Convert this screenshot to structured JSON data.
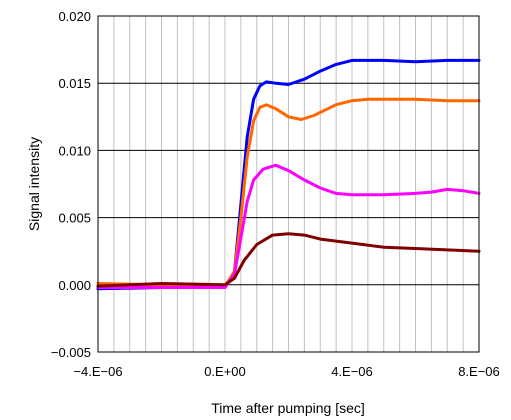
{
  "chart_data": {
    "type": "line",
    "title": "",
    "xlabel": "Time after pumping [sec]",
    "ylabel": "Signal intensity",
    "xlim": [
      -4e-06,
      8e-06
    ],
    "ylim": [
      -0.005,
      0.02
    ],
    "x_ticks": [
      -4e-06,
      0,
      4e-06,
      8e-06
    ],
    "x_tick_labels": [
      "−4.E−06",
      "0.E+00",
      "4.E−06",
      "8.E−06"
    ],
    "y_ticks": [
      -0.005,
      0,
      0.005,
      0.01,
      0.015,
      0.02
    ],
    "y_tick_labels": [
      "−0.005",
      "0.000",
      "0.005",
      "0.010",
      "0.015",
      "0.020"
    ],
    "grid": true,
    "series": [
      {
        "color": "#0000ff",
        "points": [
          [
            -4e-06,
            -0.0003
          ],
          [
            -2e-06,
            -0.0002
          ],
          [
            0,
            -0.0002
          ],
          [
            3e-07,
            0.001
          ],
          [
            5e-07,
            0.006
          ],
          [
            7e-07,
            0.011
          ],
          [
            9e-07,
            0.0138
          ],
          [
            1.1e-06,
            0.0148
          ],
          [
            1.3e-06,
            0.0151
          ],
          [
            1.6e-06,
            0.015
          ],
          [
            2e-06,
            0.0149
          ],
          [
            2.5e-06,
            0.0153
          ],
          [
            3e-06,
            0.0159
          ],
          [
            3.5e-06,
            0.0164
          ],
          [
            4e-06,
            0.0167
          ],
          [
            5e-06,
            0.0167
          ],
          [
            6e-06,
            0.0166
          ],
          [
            7e-06,
            0.0167
          ],
          [
            8e-06,
            0.0167
          ]
        ]
      },
      {
        "color": "#ff6600",
        "points": [
          [
            -4e-06,
            0.0001
          ],
          [
            -2e-06,
            0.0
          ],
          [
            0,
            -0.0001
          ],
          [
            3e-07,
            0.001
          ],
          [
            5e-07,
            0.005
          ],
          [
            7e-07,
            0.0095
          ],
          [
            9e-07,
            0.0122
          ],
          [
            1.1e-06,
            0.0132
          ],
          [
            1.3e-06,
            0.0134
          ],
          [
            1.6e-06,
            0.0131
          ],
          [
            2e-06,
            0.0125
          ],
          [
            2.4e-06,
            0.0123
          ],
          [
            2.8e-06,
            0.0126
          ],
          [
            3.5e-06,
            0.0134
          ],
          [
            4e-06,
            0.0137
          ],
          [
            4.5e-06,
            0.0138
          ],
          [
            6e-06,
            0.0138
          ],
          [
            7e-06,
            0.0137
          ],
          [
            8e-06,
            0.0137
          ]
        ]
      },
      {
        "color": "#ff00ff",
        "points": [
          [
            -4e-06,
            -0.0002
          ],
          [
            -2e-06,
            -0.0002
          ],
          [
            0,
            -0.0002
          ],
          [
            3e-07,
            0.0008
          ],
          [
            5e-07,
            0.0035
          ],
          [
            7e-07,
            0.0062
          ],
          [
            9e-07,
            0.0078
          ],
          [
            1.2e-06,
            0.0086
          ],
          [
            1.6e-06,
            0.0089
          ],
          [
            2e-06,
            0.0085
          ],
          [
            2.5e-06,
            0.0078
          ],
          [
            3e-06,
            0.0072
          ],
          [
            3.5e-06,
            0.0068
          ],
          [
            4e-06,
            0.0067
          ],
          [
            5e-06,
            0.0067
          ],
          [
            6e-06,
            0.0068
          ],
          [
            6.5e-06,
            0.0069
          ],
          [
            7e-06,
            0.0071
          ],
          [
            7.5e-06,
            0.007
          ],
          [
            8e-06,
            0.0068
          ]
        ]
      },
      {
        "color": "#800000",
        "points": [
          [
            -4e-06,
            -0.0001
          ],
          [
            -2e-06,
            0.0001
          ],
          [
            0,
            0.0
          ],
          [
            3e-07,
            0.0005
          ],
          [
            6e-07,
            0.0018
          ],
          [
            1e-06,
            0.003
          ],
          [
            1.5e-06,
            0.0037
          ],
          [
            2e-06,
            0.0038
          ],
          [
            2.5e-06,
            0.0037
          ],
          [
            3e-06,
            0.0034
          ],
          [
            4e-06,
            0.0031
          ],
          [
            5e-06,
            0.0028
          ],
          [
            6e-06,
            0.0027
          ],
          [
            7e-06,
            0.0026
          ],
          [
            8e-06,
            0.0025
          ]
        ]
      }
    ]
  }
}
